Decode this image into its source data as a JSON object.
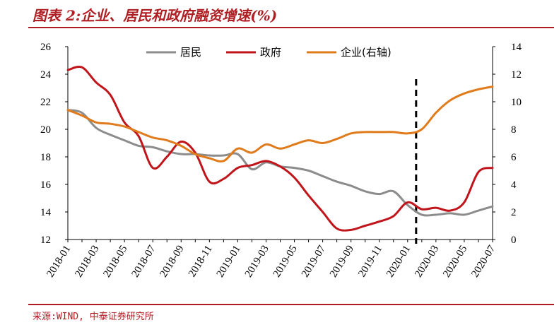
{
  "header": {
    "title": "图表 2:企业、居民和政府融资增速(%)"
  },
  "footer": {
    "source": "来源:WIND, 中泰证券研究所"
  },
  "chart_data": {
    "type": "line",
    "title": "图表 2:企业、居民和政府融资增速(%)",
    "categories": [
      "2018-01",
      "2018-02",
      "2018-03",
      "2018-04",
      "2018-05",
      "2018-06",
      "2018-07",
      "2018-08",
      "2018-09",
      "2018-10",
      "2018-11",
      "2018-12",
      "2019-01",
      "2019-02",
      "2019-03",
      "2019-04",
      "2019-05",
      "2019-06",
      "2019-07",
      "2019-08",
      "2019-09",
      "2019-10",
      "2019-11",
      "2019-12",
      "2020-01",
      "2020-02",
      "2020-03",
      "2020-04",
      "2020-05",
      "2020-06",
      "2020-07"
    ],
    "x_tick_labels": [
      "2018-01",
      "2018-03",
      "2018-05",
      "2018-07",
      "2018-09",
      "2018-11",
      "2019-01",
      "2019-03",
      "2019-05",
      "2019-07",
      "2019-09",
      "2019-11",
      "2020-01",
      "2020-03",
      "2020-05",
      "2020-07"
    ],
    "left_axis": {
      "ylim": [
        12,
        26
      ],
      "ticks": [
        "12",
        "14",
        "16",
        "18",
        "20",
        "22",
        "24",
        "26"
      ]
    },
    "right_axis": {
      "ylim": [
        0,
        14
      ],
      "ticks": [
        "0",
        "2",
        "4",
        "6",
        "8",
        "10",
        "12",
        "14"
      ]
    },
    "series": [
      {
        "name": "居民",
        "axis": "left",
        "color": "#8c8c8c",
        "values": [
          21.4,
          21.2,
          20.1,
          19.6,
          19.2,
          18.8,
          18.7,
          18.4,
          18.2,
          18.2,
          18.1,
          18.1,
          18.2,
          17.1,
          17.6,
          17.3,
          17.2,
          17.0,
          16.6,
          16.2,
          15.9,
          15.5,
          15.3,
          15.5,
          14.5,
          13.8,
          13.8,
          13.9,
          13.8,
          14.1,
          14.4
        ]
      },
      {
        "name": "政府",
        "axis": "left",
        "color": "#c0151b",
        "values": [
          24.3,
          24.5,
          23.4,
          22.5,
          20.5,
          19.5,
          17.2,
          18.0,
          19.1,
          18.3,
          16.2,
          16.4,
          17.2,
          17.4,
          17.7,
          17.3,
          16.5,
          15.2,
          14.0,
          12.8,
          12.7,
          13.0,
          13.3,
          13.7,
          14.7,
          14.2,
          14.3,
          14.1,
          14.7,
          16.9,
          17.2
        ]
      },
      {
        "name": "企业(右轴)",
        "axis": "right",
        "color": "#e07b1c",
        "values": [
          9.4,
          9.0,
          8.5,
          8.4,
          8.2,
          7.8,
          7.4,
          7.2,
          6.8,
          6.2,
          5.9,
          5.7,
          6.6,
          6.3,
          6.9,
          6.6,
          6.9,
          7.2,
          7.0,
          7.3,
          7.7,
          7.8,
          7.8,
          7.8,
          7.7,
          8.0,
          9.2,
          10.1,
          10.6,
          10.9,
          11.1
        ]
      }
    ],
    "annotations": [
      {
        "type": "vertical-dashed-line",
        "between": [
          "2020-01",
          "2020-02"
        ]
      }
    ],
    "legend_position": "top"
  }
}
